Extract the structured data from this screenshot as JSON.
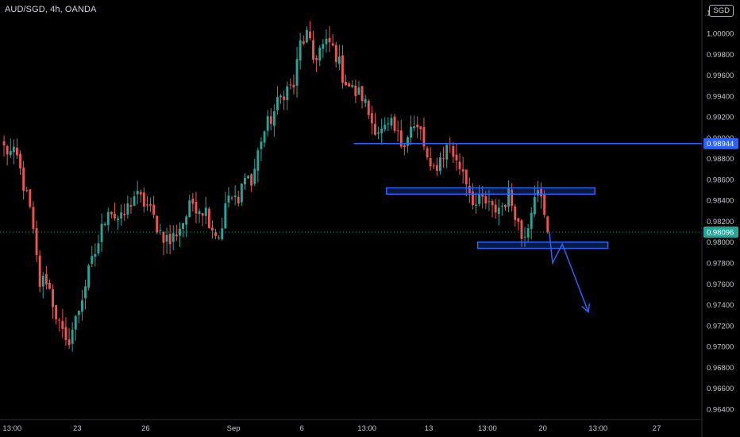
{
  "header": {
    "symbol_line": "AUD/SGD, 4h, OANDA",
    "currency_badge": "SGD"
  },
  "colors": {
    "background": "#000000",
    "up_candle": "#26a69a",
    "down_candle": "#ef5350",
    "drawing": "#2962ff",
    "axis_text": "#c4c7cf",
    "current_price_tag": "#26a69a",
    "level_price_tag": "#2962ff"
  },
  "chart_data": {
    "type": "candlestick",
    "title": "AUD/SGD, 4h, OANDA",
    "y_axis": {
      "min": 0.963,
      "max": 1.0032,
      "tick_labels": [
        "0.96400",
        "0.96600",
        "0.96800",
        "0.97000",
        "0.97200",
        "0.97400",
        "0.97600",
        "0.97800",
        "0.98000",
        "0.98200",
        "0.98400",
        "0.98600",
        "0.98800",
        "0.99000",
        "0.99200",
        "0.99400",
        "0.99600",
        "0.99800",
        "1.00000",
        "1.00200"
      ],
      "tick_values": [
        0.964,
        0.966,
        0.968,
        0.97,
        0.972,
        0.974,
        0.976,
        0.978,
        0.98,
        0.982,
        0.984,
        0.986,
        0.988,
        0.99,
        0.992,
        0.994,
        0.996,
        0.998,
        1.0,
        1.002
      ]
    },
    "x_axis": {
      "tick_labels": [
        "13:00",
        "23",
        "26",
        "Sep",
        "6",
        "13:00",
        "13",
        "13:00",
        "20",
        "13:00",
        "27"
      ],
      "tick_positions_bar_index": [
        3,
        23,
        44,
        71,
        92,
        112,
        131,
        149,
        166,
        183,
        201
      ]
    },
    "price_tags": [
      {
        "label": "0.98944",
        "value": 0.98944,
        "kind": "level"
      },
      {
        "label": "0.98096",
        "value": 0.98096,
        "kind": "current"
      }
    ],
    "annotations": {
      "horizontal_line": {
        "value": 0.98944,
        "from_bar": 108
      },
      "zones": [
        {
          "top": 0.9852,
          "bottom": 0.9846,
          "from_bar": 118,
          "to_bar": 182
        },
        {
          "top": 0.98,
          "bottom": 0.9794,
          "from_bar": 146,
          "to_bar": 186
        }
      ],
      "projection_path": [
        {
          "bar": 168,
          "value": 0.981
        },
        {
          "bar": 169,
          "value": 0.978
        },
        {
          "bar": 172,
          "value": 0.9798
        },
        {
          "bar": 180,
          "value": 0.9733
        }
      ]
    },
    "anchors": [
      [
        0,
        0.989
      ],
      [
        4,
        0.988
      ],
      [
        8,
        0.983
      ],
      [
        11,
        0.976
      ],
      [
        13,
        0.9765
      ],
      [
        17,
        0.972
      ],
      [
        19,
        0.97
      ],
      [
        22,
        0.9725
      ],
      [
        25,
        0.976
      ],
      [
        29,
        0.98
      ],
      [
        32,
        0.9835
      ],
      [
        34,
        0.9825
      ],
      [
        36,
        0.982
      ],
      [
        40,
        0.9845
      ],
      [
        44,
        0.9835
      ],
      [
        48,
        0.981
      ],
      [
        51,
        0.98
      ],
      [
        55,
        0.982
      ],
      [
        58,
        0.9838
      ],
      [
        62,
        0.983
      ],
      [
        64,
        0.9815
      ],
      [
        66,
        0.9805
      ],
      [
        69,
        0.9845
      ],
      [
        72,
        0.9835
      ],
      [
        74,
        0.987
      ],
      [
        76,
        0.9855
      ],
      [
        79,
        0.99
      ],
      [
        83,
        0.9925
      ],
      [
        86,
        0.9945
      ],
      [
        89,
        0.995
      ],
      [
        91,
        0.999
      ],
      [
        93,
        0.9998
      ],
      [
        95,
        0.9975
      ],
      [
        97,
        0.9985
      ],
      [
        100,
        0.999
      ],
      [
        102,
        0.998
      ],
      [
        104,
        0.996
      ],
      [
        107,
        0.9945
      ],
      [
        110,
        0.994
      ],
      [
        113,
        0.9915
      ],
      [
        116,
        0.9905
      ],
      [
        119,
        0.991
      ],
      [
        122,
        0.9895
      ],
      [
        125,
        0.991
      ],
      [
        128,
        0.9905
      ],
      [
        131,
        0.9865
      ],
      [
        134,
        0.988
      ],
      [
        137,
        0.9895
      ],
      [
        139,
        0.9875
      ],
      [
        141,
        0.987
      ],
      [
        143,
        0.985
      ],
      [
        145,
        0.9835
      ],
      [
        147,
        0.984
      ],
      [
        150,
        0.983
      ],
      [
        153,
        0.9835
      ],
      [
        155,
        0.9845
      ],
      [
        157,
        0.983
      ],
      [
        159,
        0.9805
      ],
      [
        161,
        0.982
      ],
      [
        163,
        0.985
      ],
      [
        165,
        0.984
      ],
      [
        167,
        0.9805
      ]
    ],
    "total_bars": 215
  }
}
